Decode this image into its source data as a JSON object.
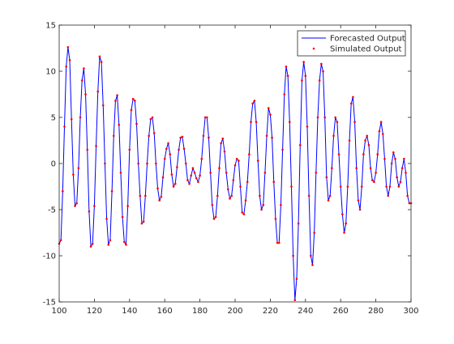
{
  "chart_data": {
    "type": "line",
    "xlim": [
      100,
      300
    ],
    "ylim": [
      -15,
      15
    ],
    "xticks": [
      100,
      120,
      140,
      160,
      180,
      200,
      220,
      240,
      260,
      280,
      300
    ],
    "yticks": [
      -15,
      -10,
      -5,
      0,
      5,
      10,
      15
    ],
    "x_tick_labels": [
      "100",
      "120",
      "140",
      "160",
      "180",
      "200",
      "220",
      "240",
      "260",
      "280",
      "300"
    ],
    "y_tick_labels": [
      "-15",
      "-10",
      "-5",
      "0",
      "5",
      "10",
      "15"
    ],
    "grid": false,
    "legend_position": "top-right",
    "series": [
      {
        "name": "Forecasted Output",
        "style": "line",
        "color": "#0000ff",
        "x": [
          100,
          101,
          102,
          103,
          104,
          105,
          106,
          107,
          108,
          109,
          110,
          111,
          112,
          113,
          114,
          115,
          116,
          117,
          118,
          119,
          120,
          121,
          122,
          123,
          124,
          125,
          126,
          127,
          128,
          129,
          130,
          131,
          132,
          133,
          134,
          135,
          136,
          137,
          138,
          139,
          140,
          141,
          142,
          143,
          144,
          145,
          146,
          147,
          148,
          149,
          150,
          151,
          152,
          153,
          154,
          155,
          156,
          157,
          158,
          159,
          160,
          161,
          162,
          163,
          164,
          165,
          166,
          167,
          168,
          169,
          170,
          171,
          172,
          173,
          174,
          175,
          176,
          177,
          178,
          179,
          180,
          181,
          182,
          183,
          184,
          185,
          186,
          187,
          188,
          189,
          190,
          191,
          192,
          193,
          194,
          195,
          196,
          197,
          198,
          199,
          200,
          201,
          202,
          203,
          204,
          205,
          206,
          207,
          208,
          209,
          210,
          211,
          212,
          213,
          214,
          215,
          216,
          217,
          218,
          219,
          220,
          221,
          222,
          223,
          224,
          225,
          226,
          227,
          228,
          229,
          230,
          231,
          232,
          233,
          234,
          235,
          236,
          237,
          238,
          239,
          240,
          241,
          242,
          243,
          244,
          245,
          246,
          247,
          248,
          249,
          250,
          251,
          252,
          253,
          254,
          255,
          256,
          257,
          258,
          259,
          260,
          261,
          262,
          263,
          264,
          265,
          266,
          267,
          268,
          269,
          270,
          271,
          272,
          273,
          274,
          275,
          276,
          277,
          278,
          279,
          280,
          281,
          282,
          283,
          284,
          285,
          286,
          287,
          288,
          289,
          290,
          291,
          292,
          293,
          294,
          295,
          296,
          297,
          298,
          299,
          300
        ],
        "y": [
          -8.7,
          -8.3,
          -3.0,
          4.0,
          10.5,
          12.6,
          11.2,
          4.8,
          -1.2,
          -4.6,
          -4.3,
          -0.5,
          5.0,
          9.0,
          10.3,
          7.5,
          1.5,
          -5.2,
          -9.0,
          -8.7,
          -4.6,
          1.9,
          7.8,
          11.6,
          11.0,
          6.3,
          0.0,
          -6.0,
          -8.8,
          -8.3,
          -3.0,
          3.0,
          6.8,
          7.4,
          4.2,
          -1.0,
          -5.8,
          -8.5,
          -8.8,
          -4.6,
          1.5,
          5.8,
          7.0,
          6.8,
          4.3,
          0.0,
          -3.5,
          -6.5,
          -6.3,
          -3.5,
          0.0,
          3.0,
          4.8,
          5.0,
          3.3,
          0.0,
          -2.7,
          -4.0,
          -3.6,
          -1.5,
          0.5,
          1.6,
          2.2,
          1.0,
          -1.2,
          -2.5,
          -2.2,
          -0.4,
          1.5,
          2.8,
          2.9,
          1.6,
          0.0,
          -1.8,
          -2.2,
          -1.3,
          -0.5,
          -1.0,
          -1.6,
          -2.0,
          -1.3,
          0.5,
          3.0,
          5.0,
          5.0,
          2.8,
          -1.0,
          -4.5,
          -6.0,
          -5.8,
          -3.5,
          -0.5,
          2.2,
          2.7,
          1.3,
          -1.0,
          -2.8,
          -3.8,
          -3.5,
          -1.8,
          -0.2,
          0.5,
          0.3,
          -2.5,
          -5.3,
          -5.5,
          -4.0,
          -2.0,
          1.0,
          4.5,
          6.5,
          6.8,
          4.5,
          0.3,
          -3.5,
          -5.0,
          -4.5,
          -1.0,
          3.0,
          6.0,
          5.3,
          2.8,
          -2.0,
          -6.0,
          -8.6,
          -8.6,
          -4.5,
          1.5,
          7.5,
          10.5,
          9.5,
          4.5,
          -2.5,
          -10.0,
          -14.8,
          -12.5,
          -6.5,
          2.0,
          9.0,
          11.0,
          9.5,
          4.0,
          -3.5,
          -10.0,
          -11.0,
          -7.5,
          -1.0,
          5.0,
          9.0,
          10.8,
          10.0,
          5.0,
          -1.5,
          -4.0,
          -3.5,
          -0.5,
          3.0,
          5.0,
          4.5,
          1.0,
          -2.5,
          -5.5,
          -7.5,
          -6.5,
          -2.5,
          2.5,
          6.5,
          7.2,
          4.5,
          -0.5,
          -4.0,
          -5.0,
          -2.5,
          1.0,
          2.5,
          3.0,
          2.0,
          -0.5,
          -1.8,
          -2.0,
          -1.0,
          1.0,
          3.5,
          4.5,
          3.2,
          0.5,
          -2.5,
          -3.5,
          -2.5,
          0.0,
          1.2,
          0.5,
          -1.5,
          -2.5,
          -2.0,
          -0.5,
          0.5,
          -1.0,
          -3.5,
          -4.3,
          -4.3
        ],
        "legend_label": "Forecasted Output"
      },
      {
        "name": "Simulated Output",
        "style": "markers",
        "color": "#ff0000",
        "x": [
          100,
          101,
          102,
          103,
          104,
          105,
          106,
          107,
          108,
          109,
          110,
          111,
          112,
          113,
          114,
          115,
          116,
          117,
          118,
          119,
          120,
          121,
          122,
          123,
          124,
          125,
          126,
          127,
          128,
          129,
          130,
          131,
          132,
          133,
          134,
          135,
          136,
          137,
          138,
          139,
          140,
          141,
          142,
          143,
          144,
          145,
          146,
          147,
          148,
          149,
          150,
          151,
          152,
          153,
          154,
          155,
          156,
          157,
          158,
          159,
          160,
          161,
          162,
          163,
          164,
          165,
          166,
          167,
          168,
          169,
          170,
          171,
          172,
          173,
          174,
          175,
          176,
          177,
          178,
          179,
          180,
          181,
          182,
          183,
          184,
          185,
          186,
          187,
          188,
          189,
          190,
          191,
          192,
          193,
          194,
          195,
          196,
          197,
          198,
          199,
          200,
          201,
          202,
          203,
          204,
          205,
          206,
          207,
          208,
          209,
          210,
          211,
          212,
          213,
          214,
          215,
          216,
          217,
          218,
          219,
          220,
          221,
          222,
          223,
          224,
          225,
          226,
          227,
          228,
          229,
          230,
          231,
          232,
          233,
          234,
          235,
          236,
          237,
          238,
          239,
          240,
          241,
          242,
          243,
          244,
          245,
          246,
          247,
          248,
          249,
          250,
          251,
          252,
          253,
          254,
          255,
          256,
          257,
          258,
          259,
          260,
          261,
          262,
          263,
          264,
          265,
          266,
          267,
          268,
          269,
          270,
          271,
          272,
          273,
          274,
          275,
          276,
          277,
          278,
          279,
          280,
          281,
          282,
          283,
          284,
          285,
          286,
          287,
          288,
          289,
          290,
          291,
          292,
          293,
          294,
          295,
          296,
          297,
          298,
          299,
          300
        ],
        "y": [
          -8.7,
          -8.3,
          -3.0,
          4.0,
          10.5,
          12.6,
          11.2,
          4.8,
          -1.2,
          -4.6,
          -4.3,
          -0.5,
          5.0,
          9.0,
          10.3,
          7.5,
          1.5,
          -5.2,
          -9.0,
          -8.7,
          -4.6,
          1.9,
          7.8,
          11.6,
          11.0,
          6.3,
          0.0,
          -6.0,
          -8.8,
          -8.3,
          -3.0,
          3.0,
          6.8,
          7.4,
          4.2,
          -1.0,
          -5.8,
          -8.5,
          -8.8,
          -4.6,
          1.5,
          5.8,
          7.0,
          6.8,
          4.3,
          0.0,
          -3.5,
          -6.5,
          -6.3,
          -3.5,
          0.0,
          3.0,
          4.8,
          5.0,
          3.3,
          0.0,
          -2.7,
          -4.0,
          -3.6,
          -1.5,
          0.5,
          1.6,
          2.2,
          1.0,
          -1.2,
          -2.5,
          -2.2,
          -0.4,
          1.5,
          2.8,
          2.9,
          1.6,
          0.0,
          -1.8,
          -2.2,
          -1.3,
          -0.5,
          -1.0,
          -1.6,
          -2.0,
          -1.3,
          0.5,
          3.0,
          5.0,
          5.0,
          2.8,
          -1.0,
          -4.5,
          -6.0,
          -5.8,
          -3.5,
          -0.5,
          2.2,
          2.7,
          1.3,
          -1.0,
          -2.8,
          -3.8,
          -3.5,
          -1.8,
          -0.2,
          0.5,
          0.3,
          -2.5,
          -5.3,
          -5.5,
          -4.0,
          -2.0,
          1.0,
          4.5,
          6.5,
          6.8,
          4.5,
          0.3,
          -3.5,
          -5.0,
          -4.5,
          -1.0,
          3.0,
          6.0,
          5.3,
          2.8,
          -2.0,
          -6.0,
          -8.6,
          -8.6,
          -4.5,
          1.5,
          7.5,
          10.5,
          9.5,
          4.5,
          -2.5,
          -10.0,
          -14.8,
          -12.5,
          -6.5,
          2.0,
          9.0,
          11.0,
          9.5,
          4.0,
          -3.5,
          -10.0,
          -11.0,
          -7.5,
          -1.0,
          5.0,
          9.0,
          10.8,
          10.0,
          5.0,
          -1.5,
          -4.0,
          -3.5,
          -0.5,
          3.0,
          5.0,
          4.5,
          1.0,
          -2.5,
          -5.5,
          -7.5,
          -6.5,
          -2.5,
          2.5,
          6.5,
          7.2,
          4.5,
          -0.5,
          -4.0,
          -5.0,
          -2.5,
          1.0,
          2.5,
          3.0,
          2.0,
          -0.5,
          -1.8,
          -2.0,
          -1.0,
          1.0,
          3.5,
          4.5,
          3.2,
          0.5,
          -2.5,
          -3.5,
          -2.5,
          0.0,
          1.2,
          0.5,
          -1.5,
          -2.5,
          -2.0,
          -0.5,
          0.5,
          -1.0,
          -3.5,
          -4.3,
          -4.3
        ],
        "legend_label": "Simulated Output"
      }
    ]
  }
}
